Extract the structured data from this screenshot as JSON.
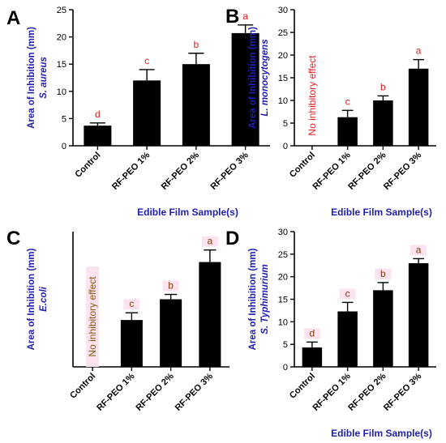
{
  "chart_data": [
    {
      "type": "bar",
      "panel": "A",
      "ylabel": "Area of Inhibition (mm)",
      "ylabel_organism": "S. aureus",
      "xlabel": "Edible Film Sample(s)",
      "categories": [
        "Control",
        "RF-PEO 1%",
        "RF-PEO 2%",
        "RF-PEO 3%"
      ],
      "values": [
        3.7,
        12.0,
        15.0,
        20.7
      ],
      "errors": [
        0.5,
        2.0,
        2.0,
        1.5
      ],
      "letters": [
        "d",
        "c",
        "b",
        "a"
      ],
      "letter_color": "#e02020",
      "yticks": [
        0,
        5,
        10,
        15,
        20,
        25
      ],
      "ylim": [
        0,
        25
      ],
      "annotation": ""
    },
    {
      "type": "bar",
      "panel": "B",
      "ylabel": "Area of Inhibition (mm)",
      "ylabel_organism": "L. monocytogens",
      "xlabel": "Edible Film Sample(s)",
      "categories": [
        "Control",
        "RF-PEO 1%",
        "RF-PEO 2%",
        "RF-PEO 3%"
      ],
      "values": [
        0,
        6.3,
        10.0,
        17.0
      ],
      "errors": [
        0,
        1.5,
        1.0,
        2.0
      ],
      "letters": [
        "",
        "c",
        "b",
        "a"
      ],
      "letter_color": "#e02020",
      "yticks": [
        0,
        5,
        10,
        15,
        20,
        25,
        30
      ],
      "ylim": [
        0,
        30
      ],
      "annotation": "No inhibitory effect",
      "annotation_color": "#e02020"
    },
    {
      "type": "bar",
      "panel": "C",
      "ylabel": "Area of Inhibition (mm)",
      "ylabel_organism": "E.coli",
      "xlabel": "",
      "categories": [
        "Control",
        "RF-PEO 1%",
        "RF-PEO 2%",
        "RF-PEO 3%"
      ],
      "values": [
        0,
        9.7,
        14.0,
        21.7
      ],
      "errors": [
        0,
        1.5,
        1.0,
        2.5
      ],
      "letters": [
        "",
        "c",
        "b",
        "a"
      ],
      "letter_color": "#8a3a10",
      "letter_bg": "#fde3ef",
      "yticks": [],
      "ylim": [
        0,
        28
      ],
      "annotation": "No inhibitory effect",
      "annotation_color": "#8a5a10",
      "annotation_bg": "#fde3ef"
    },
    {
      "type": "bar",
      "panel": "D",
      "ylabel": "Area of Inhibition (mm)",
      "ylabel_organism": "S. Typhimurium",
      "xlabel": "Edible Film Sample(s)",
      "categories": [
        "Control",
        "RF-PEO 1%",
        "RF-PEO 2%",
        "RF-PEO 3%"
      ],
      "values": [
        4.3,
        12.3,
        17.0,
        23.0
      ],
      "errors": [
        1.2,
        2.0,
        1.7,
        1.0
      ],
      "letters": [
        "d",
        "c",
        "b",
        "a"
      ],
      "letter_color": "#8a3a10",
      "letter_bg": "#fde3ef",
      "yticks": [
        0,
        5,
        10,
        15,
        20,
        25,
        30
      ],
      "ylim": [
        0,
        30
      ],
      "annotation": ""
    }
  ],
  "colors": {
    "bar": "#000000",
    "axis_label": "#1f1fb0"
  }
}
